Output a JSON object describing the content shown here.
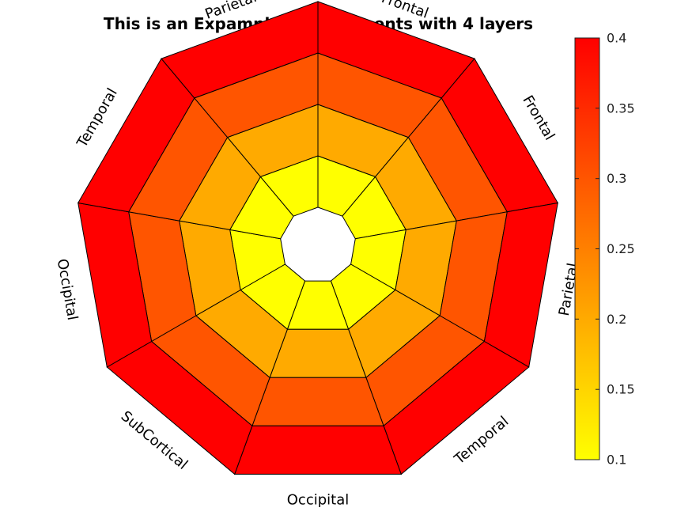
{
  "chart_data": {
    "type": "polar-segment heatmap",
    "title": "This is an Expample of 9 segments with 4 layers",
    "num_segments": 9,
    "num_layers": 4,
    "segment_labels": [
      "Frontal",
      "Frontal",
      "Parietal",
      "Temporal",
      "Occipital",
      "SubCortical",
      "Occipital",
      "Temporal",
      "Parietal"
    ],
    "layer_values": [
      0.1,
      0.2,
      0.3,
      0.4
    ],
    "colorbar": {
      "min": 0.1,
      "max": 0.4,
      "ticks": [
        0.1,
        0.15,
        0.2,
        0.25,
        0.3,
        0.35,
        0.4
      ],
      "tick_labels": [
        "0.1",
        "0.15",
        "0.2",
        "0.25",
        "0.3",
        "0.35",
        "0.4"
      ],
      "colormap": "autumn (reversed: yellow to red)"
    },
    "colors": {
      "low": "#ffff00",
      "high": "#ff0000"
    }
  }
}
